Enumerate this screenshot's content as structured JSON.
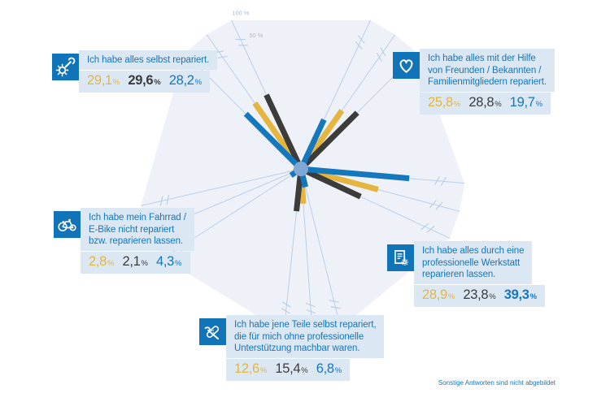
{
  "unit": "%",
  "footnote": "Sonstige Antworten sind nicht abgebildet",
  "chart_data": {
    "type": "radial-bar",
    "title": "",
    "axis_range": [
      0,
      100
    ],
    "axis_break": true,
    "scale_labels": [
      "100 %",
      "50 %"
    ],
    "series_order": [
      "gold",
      "dark",
      "blue"
    ],
    "colors": {
      "gold": "#e4b53f",
      "dark": "#3c3c3b",
      "blue": "#1577bc",
      "area": "#eef1f7",
      "spoke": "#b9cfe8",
      "dot": "#7fa8d6",
      "scale_text": "#a6bdd9",
      "icon_bg": "#1174b9",
      "box_bg": "#dbe7f3",
      "label_text": "#1576b8"
    },
    "categories": [
      {
        "id": "selbst-repariert",
        "icon": "gear-wrench-icon",
        "label_lines": [
          "Ich habe alles selbst repariert."
        ],
        "values": [
          {
            "series": "gold",
            "num": "29,1",
            "v": 29.1,
            "bold": false
          },
          {
            "series": "dark",
            "num": "29,6",
            "v": 29.6,
            "bold": true
          },
          {
            "series": "blue",
            "num": "28,2",
            "v": 28.2,
            "bold": false
          }
        ]
      },
      {
        "id": "hilfe-freunde",
        "icon": "heart-icon",
        "label_lines": [
          "Ich habe alles mit der Hilfe",
          "von Freunden / Bekannten /",
          "Familienmitgliedern repariert."
        ],
        "values": [
          {
            "series": "gold",
            "num": "25,8",
            "v": 25.8,
            "bold": false
          },
          {
            "series": "dark",
            "num": "28,8",
            "v": 28.8,
            "bold": false
          },
          {
            "series": "blue",
            "num": "19,7",
            "v": 19.7,
            "bold": false
          }
        ]
      },
      {
        "id": "werkstatt",
        "icon": "document-gear-icon",
        "label_lines": [
          "Ich habe alles durch eine",
          "professionelle Werkstatt",
          "reparieren lassen."
        ],
        "values": [
          {
            "series": "gold",
            "num": "28,9",
            "v": 28.9,
            "bold": false
          },
          {
            "series": "dark",
            "num": "23,8",
            "v": 23.8,
            "bold": false
          },
          {
            "series": "blue",
            "num": "39,3",
            "v": 39.3,
            "bold": true
          }
        ]
      },
      {
        "id": "teile-selbst",
        "icon": "wrench-plaster-icon",
        "label_lines": [
          "Ich habe jene Teile selbst repariert,",
          "die für mich ohne professionelle",
          "Unterstützung machbar waren."
        ],
        "values": [
          {
            "series": "gold",
            "num": "12,6",
            "v": 12.6,
            "bold": false
          },
          {
            "series": "dark",
            "num": "15,4",
            "v": 15.4,
            "bold": false
          },
          {
            "series": "blue",
            "num": "6,8",
            "v": 6.8,
            "bold": false
          }
        ]
      },
      {
        "id": "nicht-repariert",
        "icon": "bicycle-icon",
        "label_lines": [
          "Ich habe mein Fahrrad /",
          "E-Bike nicht repariert",
          "bzw. reparieren lassen."
        ],
        "values": [
          {
            "series": "gold",
            "num": "2,8",
            "v": 2.8,
            "bold": false
          },
          {
            "series": "dark",
            "num": "2,1",
            "v": 2.1,
            "bold": false
          },
          {
            "series": "blue",
            "num": "4,3",
            "v": 4.3,
            "bold": false
          }
        ]
      }
    ]
  }
}
